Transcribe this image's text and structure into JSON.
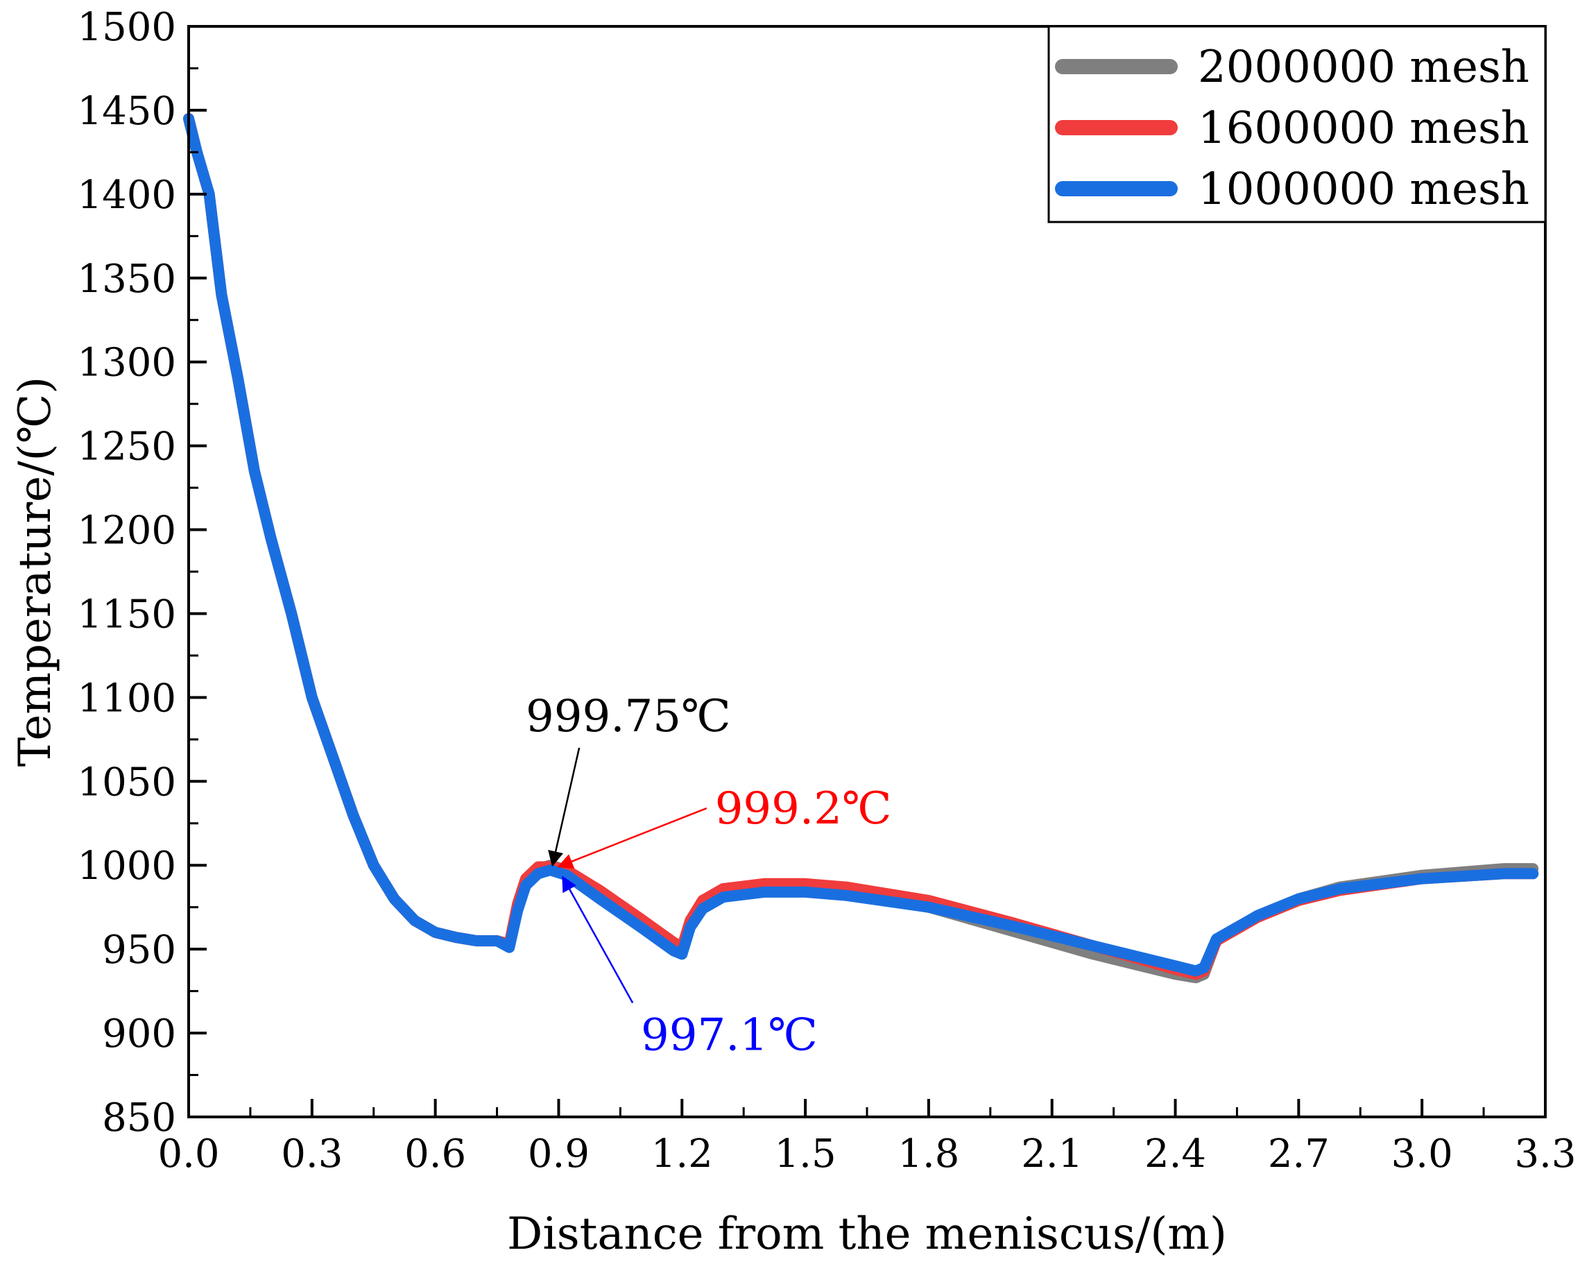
{
  "chart_data": {
    "type": "line",
    "title": "",
    "xlabel": "Distance from the meniscus/(m)",
    "ylabel": "Temperature/(℃)",
    "xlim": [
      0.0,
      3.3
    ],
    "ylim": [
      850,
      1500
    ],
    "xticks": [
      "0.0",
      "0.3",
      "0.6",
      "0.9",
      "1.2",
      "1.5",
      "1.8",
      "2.1",
      "2.4",
      "2.7",
      "3.0",
      "3.3"
    ],
    "yticks": [
      "850",
      "900",
      "950",
      "1000",
      "1050",
      "1100",
      "1150",
      "1200",
      "1250",
      "1300",
      "1350",
      "1400",
      "1450",
      "1500"
    ],
    "legend_position": "top-right",
    "series": [
      {
        "name": "2000000 mesh",
        "color": "#7f7f7f",
        "x": [
          0.0,
          0.02,
          0.05,
          0.08,
          0.12,
          0.16,
          0.2,
          0.25,
          0.3,
          0.35,
          0.4,
          0.45,
          0.5,
          0.55,
          0.6,
          0.65,
          0.7,
          0.75,
          0.78,
          0.8,
          0.82,
          0.85,
          0.88,
          0.92,
          1.0,
          1.1,
          1.18,
          1.2,
          1.22,
          1.25,
          1.3,
          1.4,
          1.5,
          1.6,
          1.8,
          2.0,
          2.2,
          2.4,
          2.45,
          2.47,
          2.5,
          2.6,
          2.7,
          2.8,
          3.0,
          3.2,
          3.27
        ],
        "y": [
          1445,
          1425,
          1400,
          1340,
          1290,
          1235,
          1195,
          1150,
          1100,
          1065,
          1030,
          1000,
          980,
          967,
          960,
          957,
          955,
          955,
          952,
          975,
          990,
          998,
          1000,
          997,
          983,
          965,
          950,
          949,
          965,
          976,
          983,
          986,
          986,
          984,
          975,
          961,
          947,
          935,
          933,
          935,
          955,
          970,
          980,
          987,
          994,
          998,
          998
        ]
      },
      {
        "name": "1600000 mesh",
        "color": "#f03c3c",
        "x": [
          0.0,
          0.02,
          0.05,
          0.08,
          0.12,
          0.16,
          0.2,
          0.25,
          0.3,
          0.35,
          0.4,
          0.45,
          0.5,
          0.55,
          0.6,
          0.65,
          0.7,
          0.75,
          0.78,
          0.8,
          0.82,
          0.85,
          0.88,
          0.92,
          1.0,
          1.1,
          1.18,
          1.2,
          1.22,
          1.25,
          1.3,
          1.4,
          1.5,
          1.6,
          1.8,
          2.0,
          2.2,
          2.4,
          2.45,
          2.47,
          2.5,
          2.6,
          2.7,
          2.8,
          3.0,
          3.2,
          3.27
        ],
        "y": [
          1445,
          1425,
          1400,
          1340,
          1290,
          1235,
          1195,
          1150,
          1100,
          1065,
          1030,
          1000,
          980,
          967,
          960,
          957,
          955,
          955,
          953,
          977,
          992,
          999,
          999.2,
          997,
          985,
          968,
          954,
          951,
          967,
          979,
          986,
          989,
          989,
          987,
          979,
          966,
          952,
          938,
          935,
          937,
          955,
          969,
          979,
          985,
          992,
          995,
          995
        ]
      },
      {
        "name": "1000000 mesh",
        "color": "#1a6fe0",
        "x": [
          0.0,
          0.02,
          0.05,
          0.08,
          0.12,
          0.16,
          0.2,
          0.25,
          0.3,
          0.35,
          0.4,
          0.45,
          0.5,
          0.55,
          0.6,
          0.65,
          0.7,
          0.75,
          0.78,
          0.8,
          0.82,
          0.85,
          0.88,
          0.92,
          1.0,
          1.1,
          1.18,
          1.2,
          1.22,
          1.25,
          1.3,
          1.4,
          1.5,
          1.6,
          1.8,
          2.0,
          2.2,
          2.4,
          2.45,
          2.47,
          2.5,
          2.6,
          2.7,
          2.8,
          3.0,
          3.2,
          3.27
        ],
        "y": [
          1445,
          1425,
          1400,
          1340,
          1290,
          1235,
          1195,
          1150,
          1100,
          1065,
          1030,
          1000,
          980,
          967,
          960,
          957,
          955,
          955,
          951,
          973,
          988,
          995,
          997.1,
          994,
          980,
          963,
          949,
          947,
          963,
          974,
          981,
          984,
          984,
          982,
          975,
          964,
          952,
          940,
          937,
          939,
          956,
          970,
          980,
          986,
          992,
          995,
          995
        ]
      }
    ],
    "annotations": [
      {
        "text": "999.75℃",
        "color": "#000000",
        "target": [
          0.885,
          1000.0
        ],
        "label_pos": [
          0.94,
          1085
        ]
      },
      {
        "text": "999.2℃",
        "color": "#ff0000",
        "target": [
          0.9,
          999.2
        ],
        "label_pos": [
          1.27,
          1030
        ]
      },
      {
        "text": "997.1℃",
        "color": "#0000ff",
        "target": [
          0.91,
          993
        ],
        "label_pos": [
          1.12,
          905
        ]
      }
    ]
  }
}
